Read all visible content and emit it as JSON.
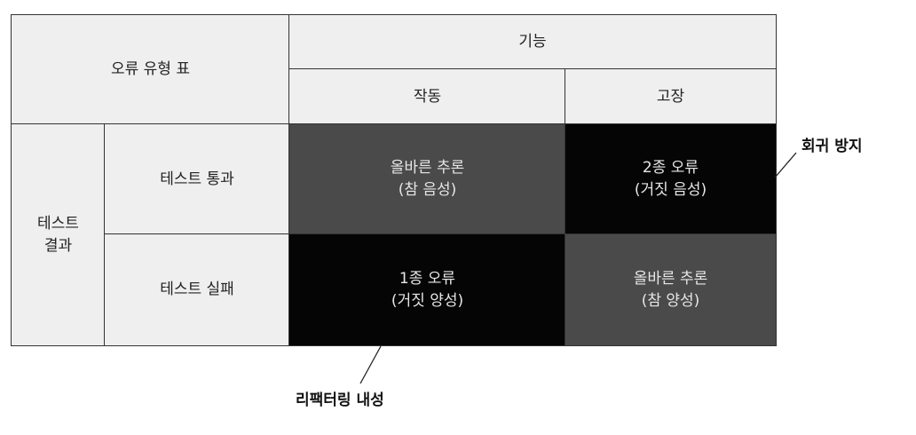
{
  "table": {
    "corner_label": "오류 유형 표",
    "column_group_label": "기능",
    "columns": [
      "작동",
      "고장"
    ],
    "row_group_label": "테스트\n결과",
    "rows": [
      "테스트 통과",
      "테스트 실패"
    ],
    "cells": [
      [
        "올바른 추론\n(참 음성)",
        "2종 오류\n(거짓 음성)"
      ],
      [
        "1종 오류\n(거짓 양성)",
        "올바른 추론\n(참 양성)"
      ]
    ]
  },
  "annotations": {
    "regression_protection": "회귀 방지",
    "refactoring_resistance": "리팩터링 내성"
  },
  "colors": {
    "header_bg": "#efefef",
    "correct_cell": "#4a4a4a",
    "error_cell": "#050505"
  }
}
